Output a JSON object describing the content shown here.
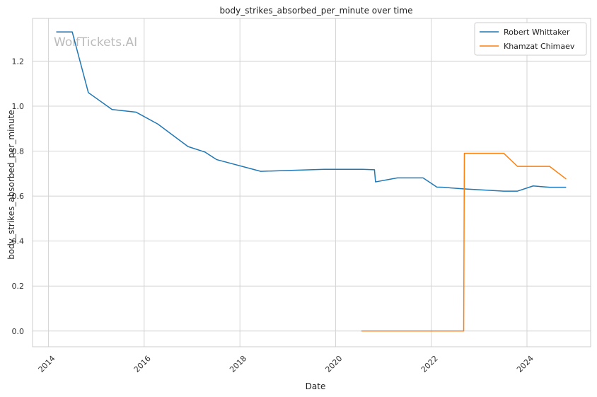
{
  "chart_data": {
    "type": "line",
    "title": "body_strikes_absorbed_per_minute over time",
    "xlabel": "Date",
    "ylabel": "body_strikes_absorbed_per_minute",
    "watermark": "WolfTickets.AI",
    "x_ticks": [
      "2014",
      "2016",
      "2018",
      "2020",
      "2022",
      "2024"
    ],
    "y_ticks": [
      "0.0",
      "0.2",
      "0.4",
      "0.6",
      "0.8",
      "1.0",
      "1.2"
    ],
    "xlim": [
      "2013-09-01",
      "2025-05-01"
    ],
    "ylim": [
      -0.07,
      1.39
    ],
    "grid": true,
    "legend_position": "top-right",
    "series": [
      {
        "name": "Robert Whittaker",
        "color": "#1f77b4",
        "points": [
          [
            "2014-03-01",
            1.33
          ],
          [
            "2014-07-01",
            1.33
          ],
          [
            "2014-11-01",
            1.06
          ],
          [
            "2015-05-01",
            0.985
          ],
          [
            "2015-11-01",
            0.973
          ],
          [
            "2016-04-15",
            0.92
          ],
          [
            "2016-12-01",
            0.82
          ],
          [
            "2017-04-08",
            0.796
          ],
          [
            "2017-07-08",
            0.762
          ],
          [
            "2018-06-09",
            0.71
          ],
          [
            "2019-10-06",
            0.719
          ],
          [
            "2020-07-25",
            0.719
          ],
          [
            "2020-10-24",
            0.717
          ],
          [
            "2020-11-01",
            0.663
          ],
          [
            "2021-04-17",
            0.681
          ],
          [
            "2021-10-30",
            0.681
          ],
          [
            "2022-02-12",
            0.64
          ],
          [
            "2022-04-01",
            0.639
          ],
          [
            "2022-09-03",
            0.632
          ],
          [
            "2023-07-08",
            0.622
          ],
          [
            "2023-10-21",
            0.622
          ],
          [
            "2024-02-17",
            0.645
          ],
          [
            "2024-06-22",
            0.639
          ],
          [
            "2024-10-26",
            0.639
          ]
        ]
      },
      {
        "name": "Khamzat Chimaev",
        "color": "#ff7f0e",
        "points": [
          [
            "2020-07-16",
            0.0
          ],
          [
            "2022-09-05",
            0.0
          ],
          [
            "2022-09-10",
            0.79
          ],
          [
            "2023-07-08",
            0.79
          ],
          [
            "2023-10-21",
            0.732
          ],
          [
            "2024-06-22",
            0.732
          ],
          [
            "2024-10-26",
            0.676
          ]
        ]
      }
    ]
  }
}
